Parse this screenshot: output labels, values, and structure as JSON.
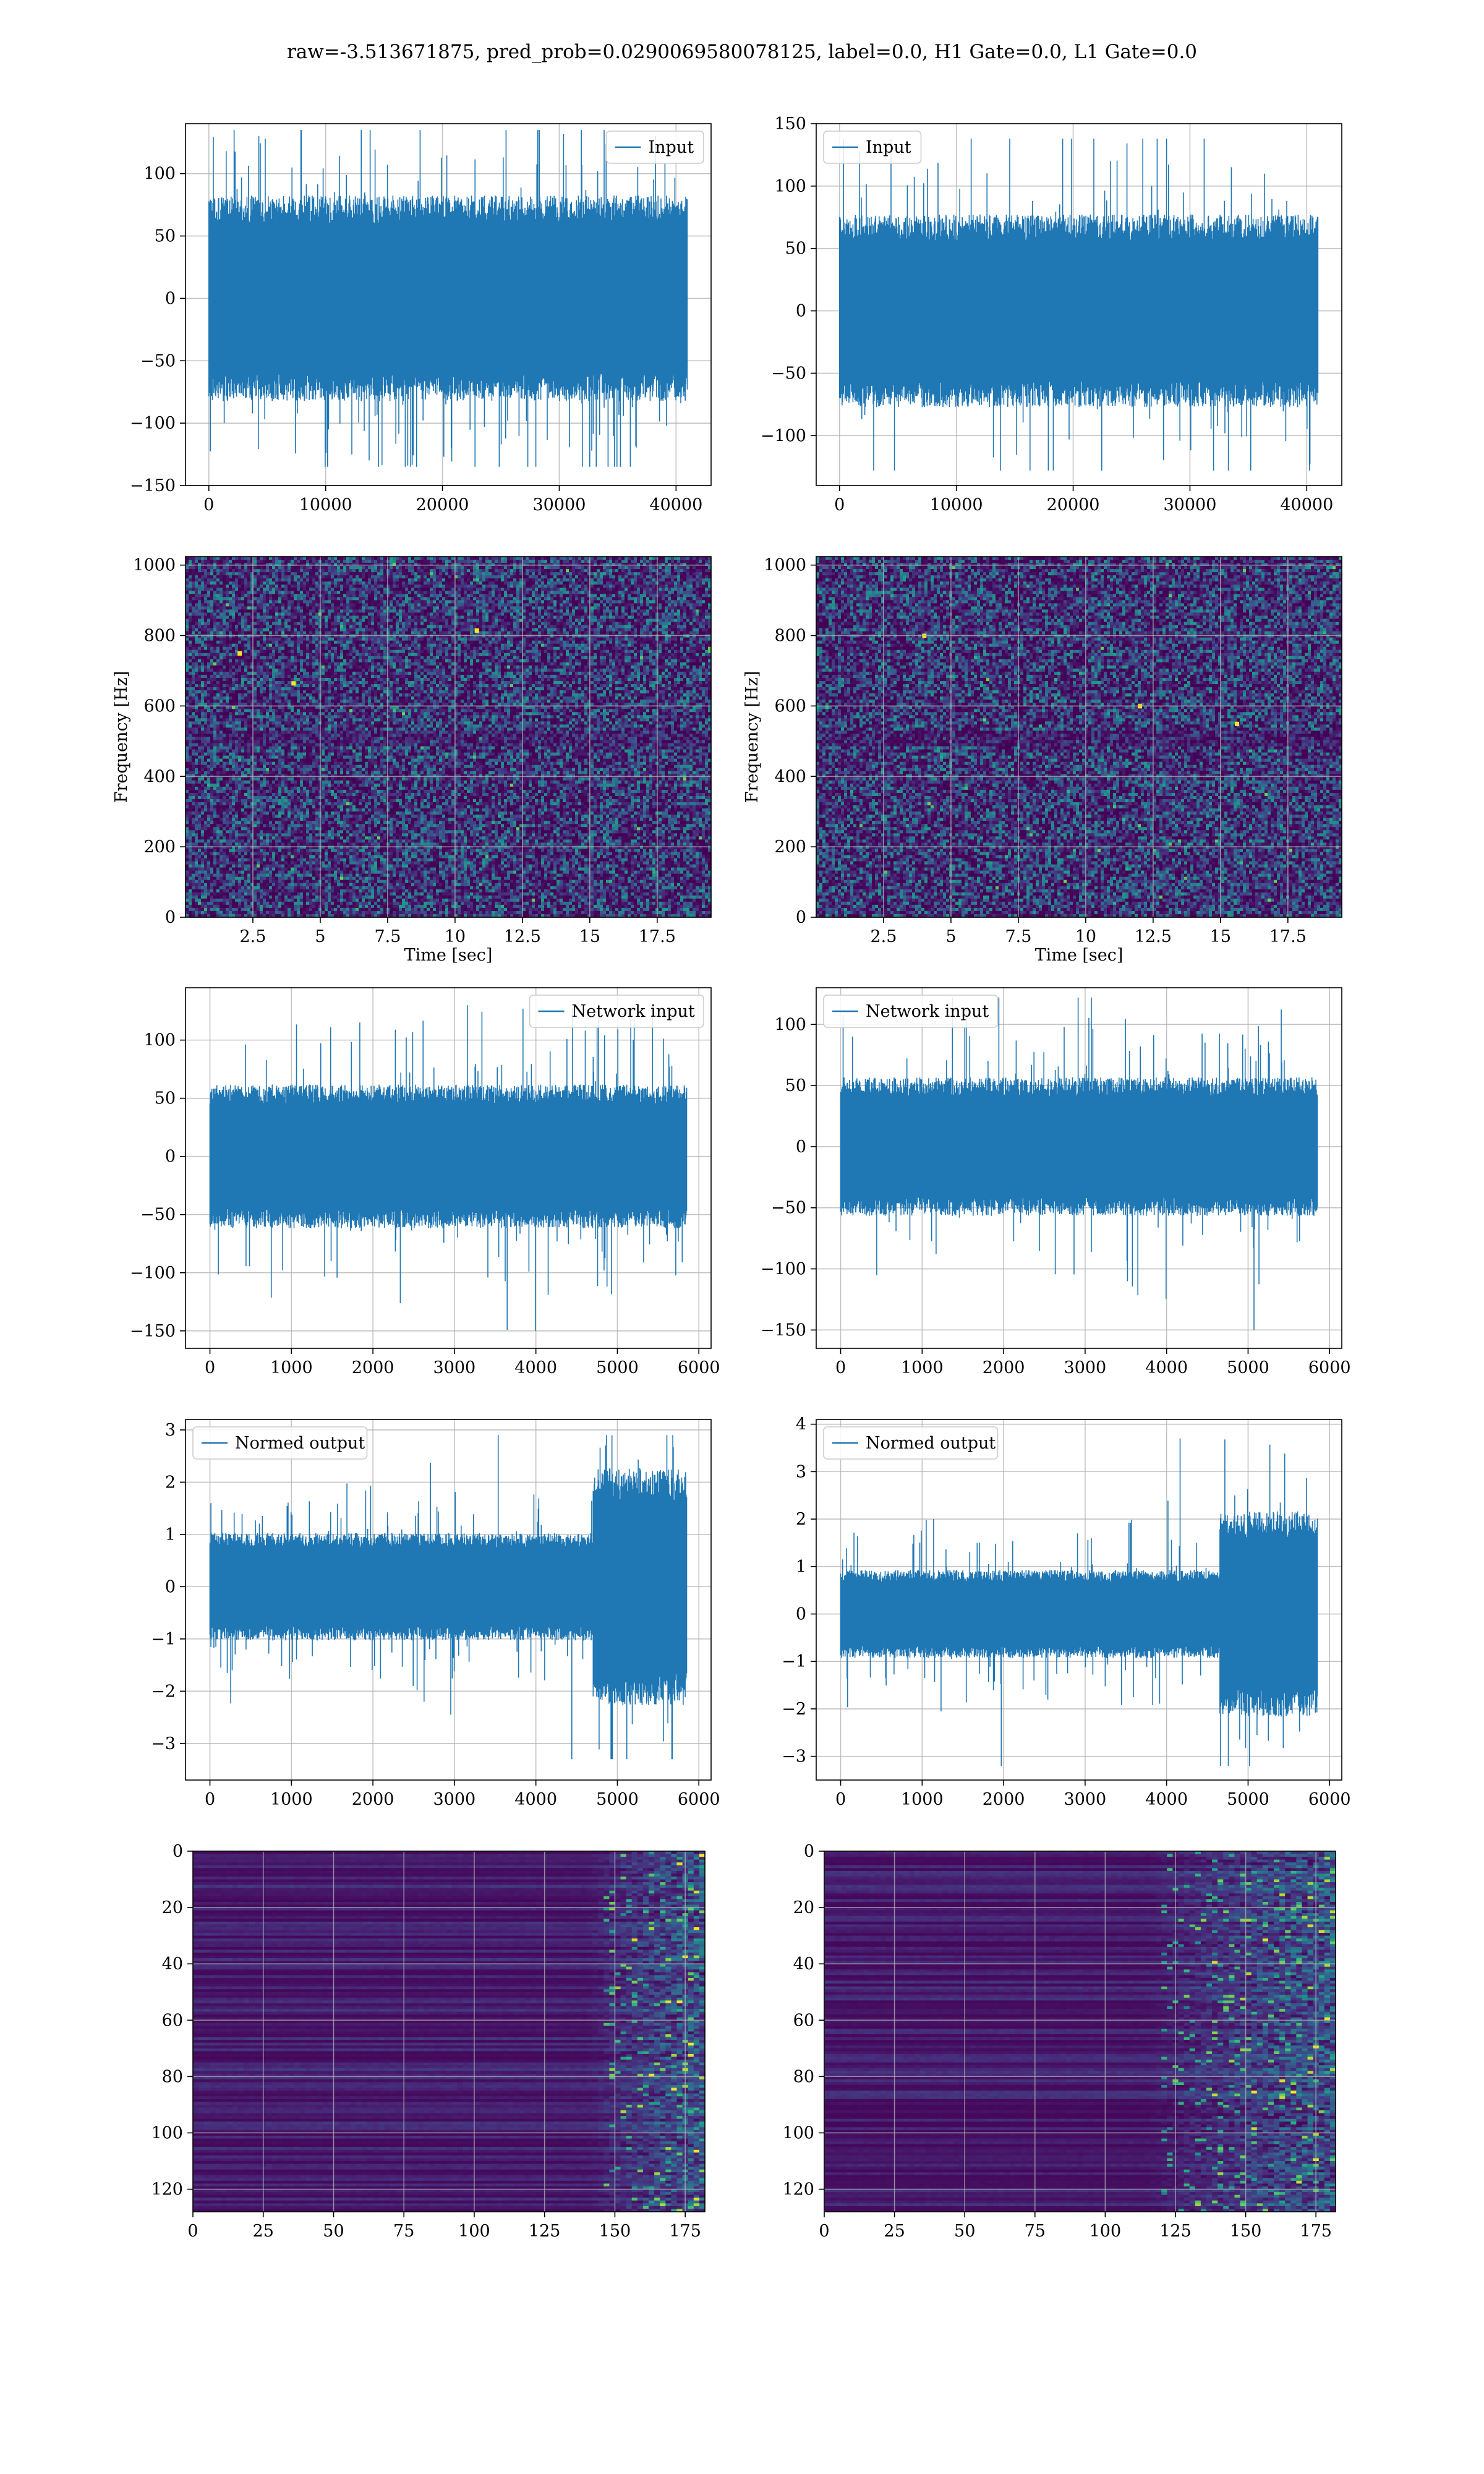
{
  "figure_title": "raw=-3.513671875, pred_prob=0.0290069580078125, label=0.0, H1 Gate=0.0, L1 Gate=0.0",
  "colors": {
    "line": "#1f77b4",
    "grid": "#b0b0b0",
    "viridis": [
      "#440154",
      "#482878",
      "#3e4989",
      "#31688e",
      "#26828e",
      "#1f9e89",
      "#35b779",
      "#6ece58",
      "#b5de2b",
      "#fde725"
    ]
  },
  "chart_data": [
    {
      "id": "input-h1",
      "type": "line",
      "legend": [
        "Input"
      ],
      "legend_loc": "upper right",
      "series": [
        {
          "name": "Input",
          "x_range": [
            0,
            40959
          ],
          "n_points": 40960,
          "typical_amplitude": 80,
          "spike_max": 135,
          "spike_min": -135
        }
      ],
      "xlim": [
        -2000,
        43000
      ],
      "ylim": [
        -150,
        140
      ],
      "xticks": [
        0,
        10000,
        20000,
        30000,
        40000
      ],
      "yticks": [
        -150,
        -100,
        -50,
        0,
        50,
        100
      ],
      "xlabel": "",
      "ylabel": "",
      "grid": true
    },
    {
      "id": "input-l1",
      "type": "line",
      "legend": [
        "Input"
      ],
      "legend_loc": "upper left",
      "series": [
        {
          "name": "Input",
          "x_range": [
            0,
            40959
          ],
          "n_points": 40960,
          "typical_amplitude": 75,
          "spike_max": 138,
          "spike_min": -128
        }
      ],
      "xlim": [
        -2000,
        43000
      ],
      "ylim": [
        -140,
        150
      ],
      "xticks": [
        0,
        10000,
        20000,
        30000,
        40000
      ],
      "yticks": [
        -100,
        -50,
        0,
        50,
        100,
        150
      ],
      "xlabel": "",
      "ylabel": "",
      "grid": true
    },
    {
      "id": "spectrogram-h1",
      "type": "heatmap",
      "xlim": [
        0,
        19.5
      ],
      "ylim": [
        0,
        1024
      ],
      "xticks": [
        2.5,
        5.0,
        7.5,
        10.0,
        12.5,
        15.0,
        17.5
      ],
      "yticks": [
        0,
        200,
        400,
        600,
        800,
        1000
      ],
      "xlabel": "Time [sec]",
      "ylabel": "Frequency [Hz]",
      "grid": true,
      "hot_spots": [
        [
          4.0,
          665
        ],
        [
          10.8,
          815
        ],
        [
          2.0,
          750
        ]
      ]
    },
    {
      "id": "spectrogram-l1",
      "type": "heatmap",
      "xlim": [
        0,
        19.5
      ],
      "ylim": [
        0,
        1024
      ],
      "xticks": [
        2.5,
        5.0,
        7.5,
        10.0,
        12.5,
        15.0,
        17.5
      ],
      "yticks": [
        0,
        200,
        400,
        600,
        800,
        1000
      ],
      "xlabel": "Time [sec]",
      "ylabel": "Frequency [Hz]",
      "grid": true,
      "hot_spots": [
        [
          15.6,
          550
        ],
        [
          12.0,
          600
        ],
        [
          4.0,
          800
        ]
      ]
    },
    {
      "id": "network-input-h1",
      "type": "line",
      "legend": [
        "Network input"
      ],
      "legend_loc": "upper right",
      "series": [
        {
          "name": "Network input",
          "x_range": [
            0,
            5850
          ],
          "n_points": 5850,
          "typical_amplitude": 60,
          "spike_max": 130,
          "spike_min": -150
        }
      ],
      "xlim": [
        -300,
        6150
      ],
      "ylim": [
        -165,
        145
      ],
      "xticks": [
        0,
        1000,
        2000,
        3000,
        4000,
        5000,
        6000
      ],
      "yticks": [
        -150,
        -100,
        -50,
        0,
        50,
        100
      ],
      "xlabel": "",
      "ylabel": "",
      "grid": true
    },
    {
      "id": "network-input-l1",
      "type": "line",
      "legend": [
        "Network input"
      ],
      "legend_loc": "upper left",
      "series": [
        {
          "name": "Network input",
          "x_range": [
            0,
            5850
          ],
          "n_points": 5850,
          "typical_amplitude": 55,
          "spike_max": 122,
          "spike_min": -150
        }
      ],
      "xlim": [
        -300,
        6150
      ],
      "ylim": [
        -165,
        130
      ],
      "xticks": [
        0,
        1000,
        2000,
        3000,
        4000,
        5000,
        6000
      ],
      "yticks": [
        -150,
        -100,
        -50,
        0,
        50,
        100
      ],
      "xlabel": "",
      "ylabel": "",
      "grid": true
    },
    {
      "id": "normed-output-h1",
      "type": "line",
      "legend": [
        "Normed output"
      ],
      "legend_loc": "upper left",
      "series": [
        {
          "name": "Normed output",
          "x_range": [
            0,
            5850
          ],
          "n_points": 5850,
          "typical_amplitude": 1.0,
          "late_amplitude": 2.2,
          "late_start": 4700,
          "spike_max": 2.9,
          "spike_min": -3.3
        }
      ],
      "xlim": [
        -300,
        6150
      ],
      "ylim": [
        -3.7,
        3.2
      ],
      "xticks": [
        0,
        1000,
        2000,
        3000,
        4000,
        5000,
        6000
      ],
      "yticks": [
        -3,
        -2,
        -1,
        0,
        1,
        2,
        3
      ],
      "xlabel": "",
      "ylabel": "",
      "grid": true
    },
    {
      "id": "normed-output-l1",
      "type": "line",
      "legend": [
        "Normed output"
      ],
      "legend_loc": "upper left",
      "series": [
        {
          "name": "Normed output",
          "x_range": [
            0,
            5850
          ],
          "n_points": 5850,
          "typical_amplitude": 0.9,
          "late_amplitude": 2.1,
          "late_start": 4650,
          "spike_max": 3.7,
          "spike_min": -3.2
        }
      ],
      "xlim": [
        -300,
        6150
      ],
      "ylim": [
        -3.5,
        4.1
      ],
      "xticks": [
        0,
        1000,
        2000,
        3000,
        4000,
        5000,
        6000
      ],
      "yticks": [
        -3,
        -2,
        -1,
        0,
        1,
        2,
        3,
        4
      ],
      "xlabel": "",
      "ylabel": "",
      "grid": true
    },
    {
      "id": "feature-map-h1",
      "type": "heatmap",
      "xlim": [
        0,
        182
      ],
      "ylim": [
        128,
        0
      ],
      "xticks": [
        0,
        25,
        50,
        75,
        100,
        125,
        150,
        175
      ],
      "yticks": [
        0,
        20,
        40,
        60,
        80,
        100,
        120
      ],
      "xlabel": "",
      "ylabel": "",
      "grid": true,
      "bright_region_start": 145,
      "onset": 140
    },
    {
      "id": "feature-map-l1",
      "type": "heatmap",
      "xlim": [
        0,
        182
      ],
      "ylim": [
        128,
        0
      ],
      "xticks": [
        0,
        25,
        50,
        75,
        100,
        125,
        150,
        175
      ],
      "yticks": [
        0,
        20,
        40,
        60,
        80,
        100,
        120
      ],
      "xlabel": "",
      "ylabel": "",
      "grid": true,
      "bright_region_start": 120,
      "onset": 115
    }
  ]
}
